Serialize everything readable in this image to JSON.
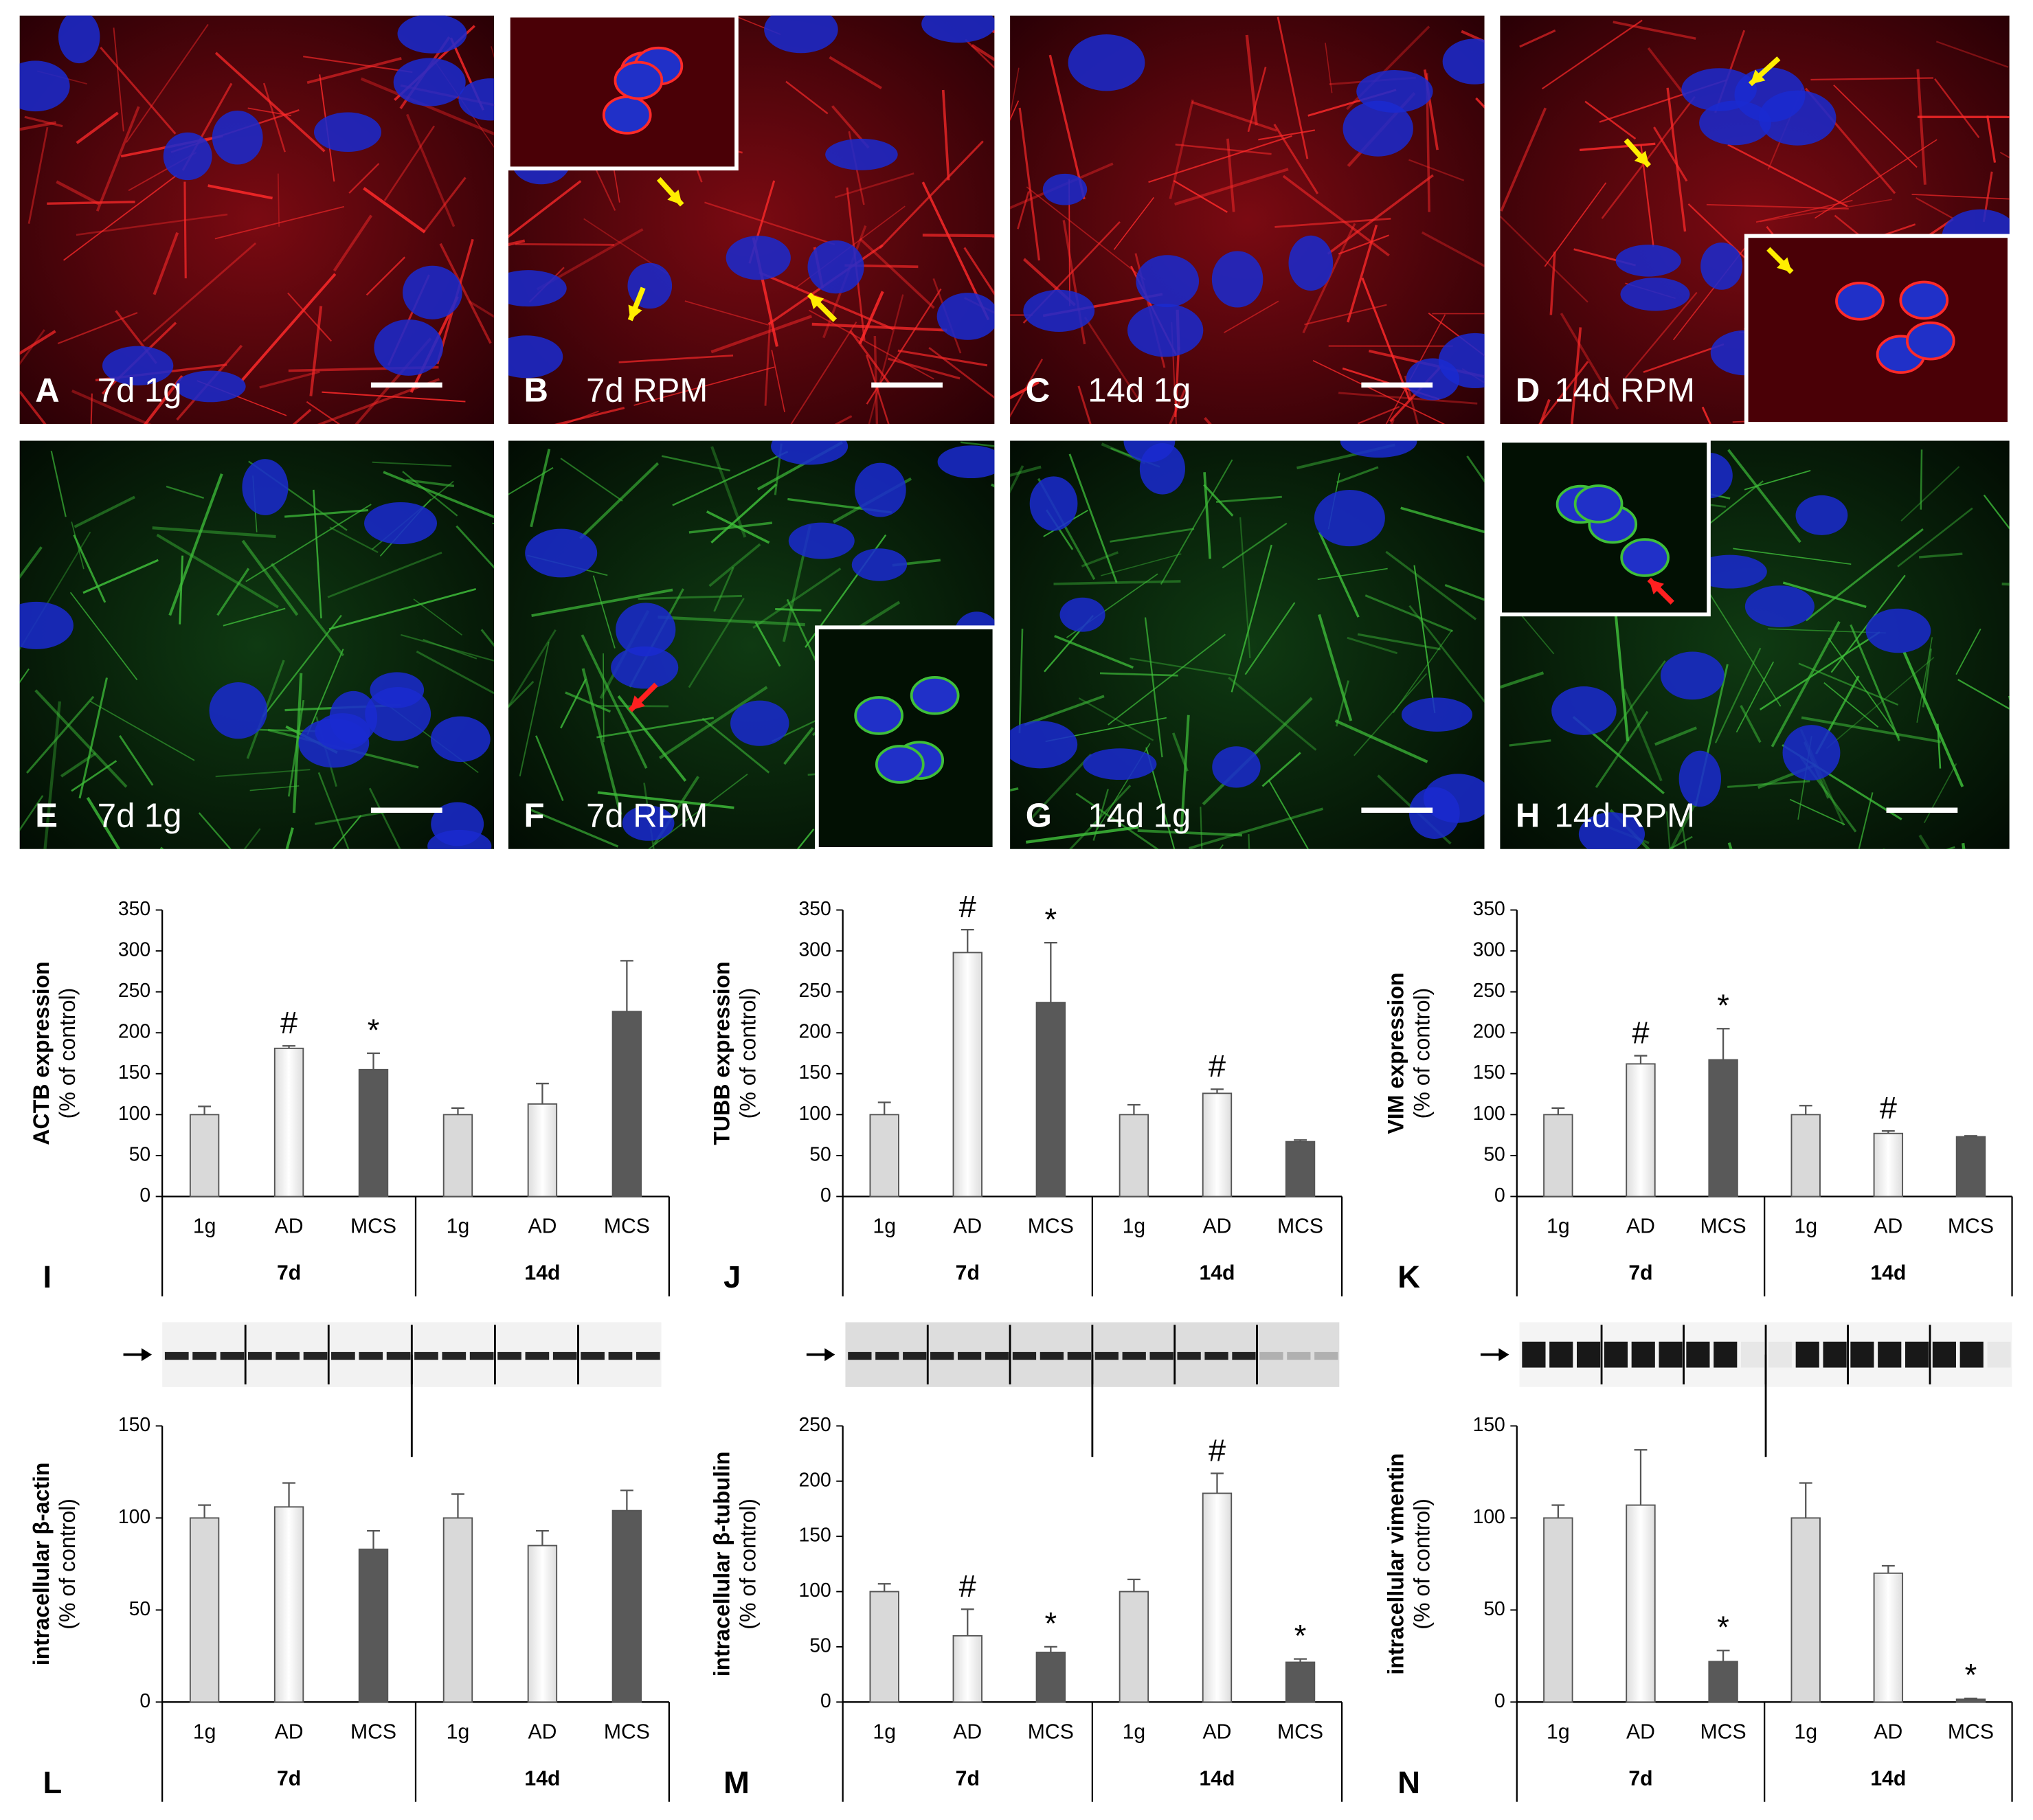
{
  "image_panels": [
    {
      "letter": "A",
      "label": "7d 1g"
    },
    {
      "letter": "B",
      "label": "7d RPM"
    },
    {
      "letter": "C",
      "label": "14d 1g"
    },
    {
      "letter": "D",
      "label": "14d RPM"
    },
    {
      "letter": "E",
      "label": "7d 1g"
    },
    {
      "letter": "F",
      "label": "7d RPM"
    },
    {
      "letter": "G",
      "label": "14d 1g"
    },
    {
      "letter": "H",
      "label": "14d RPM"
    }
  ],
  "chart_data": [
    {
      "type": "bar",
      "letter": "I",
      "ylabel": "ACTB expression",
      "ylabel_note": "(% of control)",
      "categories": [
        "1g",
        "AD",
        "MCS",
        "1g",
        "AD",
        "MCS"
      ],
      "groups": [
        "7d",
        "14d"
      ],
      "values": [
        100,
        181,
        155,
        100,
        113,
        226
      ],
      "errors": [
        10,
        3,
        20,
        8,
        25,
        62
      ],
      "markers": [
        null,
        "#",
        "*",
        null,
        null,
        null
      ],
      "colors": [
        "#d9d9d9",
        "#f4f4f4",
        "#595959",
        "#d9d9d9",
        "#f4f4f4",
        "#595959"
      ],
      "ylim": [
        0,
        350
      ],
      "yticks": [
        0,
        50,
        100,
        150,
        200,
        250,
        300,
        350
      ]
    },
    {
      "type": "bar",
      "letter": "J",
      "ylabel": "TUBB expression",
      "ylabel_note": "(% of control)",
      "categories": [
        "1g",
        "AD",
        "MCS",
        "1g",
        "AD",
        "MCS"
      ],
      "groups": [
        "7d",
        "14d"
      ],
      "values": [
        100,
        298,
        237,
        100,
        126,
        67
      ],
      "errors": [
        15,
        28,
        73,
        12,
        5,
        2
      ],
      "markers": [
        null,
        "#",
        "*",
        null,
        "#",
        null
      ],
      "colors": [
        "#d9d9d9",
        "#f4f4f4",
        "#595959",
        "#d9d9d9",
        "#f4f4f4",
        "#595959"
      ],
      "ylim": [
        0,
        350
      ],
      "yticks": [
        0,
        50,
        100,
        150,
        200,
        250,
        300,
        350
      ]
    },
    {
      "type": "bar",
      "letter": "K",
      "ylabel": "VIM expression",
      "ylabel_note": "(% of control)",
      "categories": [
        "1g",
        "AD",
        "MCS",
        "1g",
        "AD",
        "MCS"
      ],
      "groups": [
        "7d",
        "14d"
      ],
      "values": [
        100,
        162,
        167,
        100,
        77,
        73
      ],
      "errors": [
        8,
        10,
        38,
        11,
        3,
        1
      ],
      "markers": [
        null,
        "#",
        "*",
        null,
        "#",
        null
      ],
      "colors": [
        "#d9d9d9",
        "#f4f4f4",
        "#595959",
        "#d9d9d9",
        "#f4f4f4",
        "#595959"
      ],
      "ylim": [
        0,
        350
      ],
      "yticks": [
        0,
        50,
        100,
        150,
        200,
        250,
        300,
        350
      ]
    },
    {
      "type": "bar",
      "letter": "L",
      "ylabel": "intracellular β-actin",
      "ylabel_note": "(% of control)",
      "categories": [
        "1g",
        "AD",
        "MCS",
        "1g",
        "AD",
        "MCS"
      ],
      "groups": [
        "7d",
        "14d"
      ],
      "values": [
        100,
        106,
        83,
        100,
        85,
        104
      ],
      "errors": [
        7,
        13,
        10,
        13,
        8,
        11
      ],
      "markers": [
        null,
        null,
        null,
        null,
        null,
        null
      ],
      "colors": [
        "#d9d9d9",
        "#f4f4f4",
        "#595959",
        "#d9d9d9",
        "#f4f4f4",
        "#595959"
      ],
      "ylim": [
        0,
        150
      ],
      "yticks": [
        0,
        50,
        100,
        150
      ]
    },
    {
      "type": "bar",
      "letter": "M",
      "ylabel": "intracellular β-tubulin",
      "ylabel_note": "(% of control)",
      "categories": [
        "1g",
        "AD",
        "MCS",
        "1g",
        "AD",
        "MCS"
      ],
      "groups": [
        "7d",
        "14d"
      ],
      "values": [
        100,
        60,
        45,
        100,
        189,
        36
      ],
      "errors": [
        7,
        24,
        5,
        11,
        18,
        3
      ],
      "markers": [
        null,
        "#",
        "*",
        null,
        "#",
        "*"
      ],
      "colors": [
        "#d9d9d9",
        "#f4f4f4",
        "#595959",
        "#d9d9d9",
        "#f4f4f4",
        "#595959"
      ],
      "ylim": [
        0,
        250
      ],
      "yticks": [
        0,
        50,
        100,
        150,
        200,
        250
      ]
    },
    {
      "type": "bar",
      "letter": "N",
      "ylabel": "intracellular vimentin",
      "ylabel_note": "(% of control)",
      "categories": [
        "1g",
        "AD",
        "MCS",
        "1g",
        "AD",
        "MCS"
      ],
      "groups": [
        "7d",
        "14d"
      ],
      "values": [
        100,
        107,
        22,
        100,
        70,
        1.5
      ],
      "errors": [
        7,
        30,
        6,
        19,
        4,
        0.5
      ],
      "markers": [
        null,
        null,
        "*",
        null,
        null,
        "*"
      ],
      "colors": [
        "#d9d9d9",
        "#f4f4f4",
        "#595959",
        "#d9d9d9",
        "#f4f4f4",
        "#595959"
      ],
      "ylim": [
        0,
        150
      ],
      "yticks": [
        0,
        50,
        100,
        150
      ]
    }
  ]
}
